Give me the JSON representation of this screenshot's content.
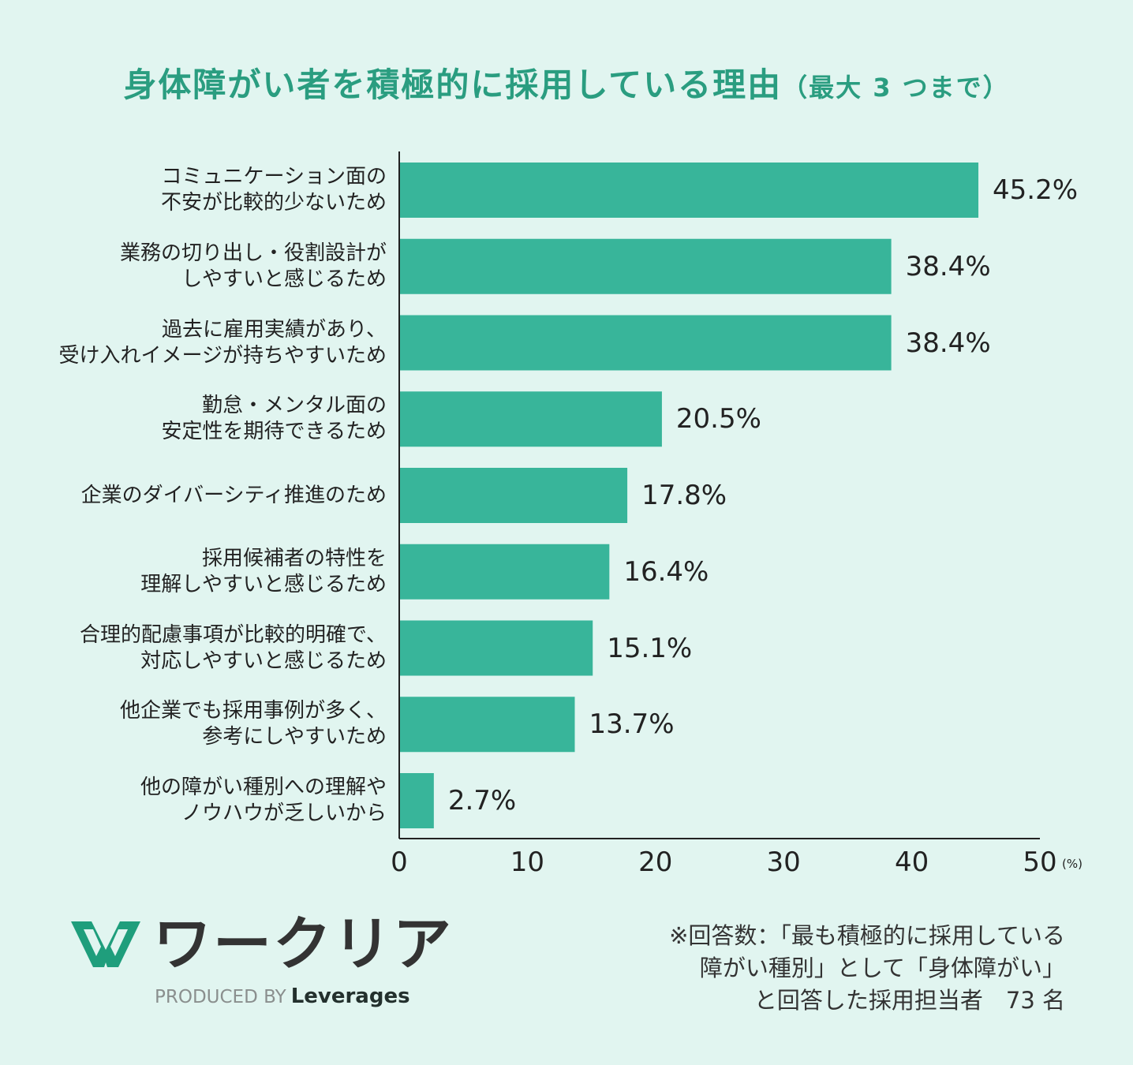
{
  "title": "身体障がい者を積極的に採用している理由",
  "title_suffix": "（最大 3 つまで）",
  "chart_data": {
    "type": "bar",
    "orientation": "horizontal",
    "categories": [
      "コミュニケーション面の\n不安が比較的少ないため",
      "業務の切り出し・役割設計が\nしやすいと感じるため",
      "過去に雇用実績があり、\n受け入れイメージが持ちやすいため",
      "勤怠・メンタル面の\n安定性を期待できるため",
      "企業のダイバーシティ推進のため",
      "採用候補者の特性を\n理解しやすいと感じるため",
      "合理的配慮事項が比較的明確で、\n対応しやすいと感じるため",
      "他企業でも採用事例が多く、\n参考にしやすいため",
      "他の障がい種別への理解や\nノウハウが乏しいから"
    ],
    "values": [
      45.2,
      38.4,
      38.4,
      20.5,
      17.8,
      16.4,
      15.1,
      13.7,
      2.7
    ],
    "value_labels": [
      "45.2%",
      "38.4%",
      "38.4%",
      "20.5%",
      "17.8%",
      "16.4%",
      "15.1%",
      "13.7%",
      "2.7%"
    ],
    "xlim": [
      0,
      50
    ],
    "xticks": [
      "0",
      "10",
      "20",
      "30",
      "40",
      "50"
    ],
    "xunit": "(%)",
    "grid": false,
    "bar_color": "#38b59a"
  },
  "note": "※回答数：「最も積極的に採用している\n障がい種別」として「身体障がい」\nと回答した採用担当者　73 名",
  "logo": {
    "text": "ワークリア",
    "produced_by": "PRODUCED BY",
    "brand": "Leverages",
    "color": "#1f9e7c"
  },
  "colors": {
    "background": "#e1f5f0",
    "title": "#2a9d80"
  }
}
